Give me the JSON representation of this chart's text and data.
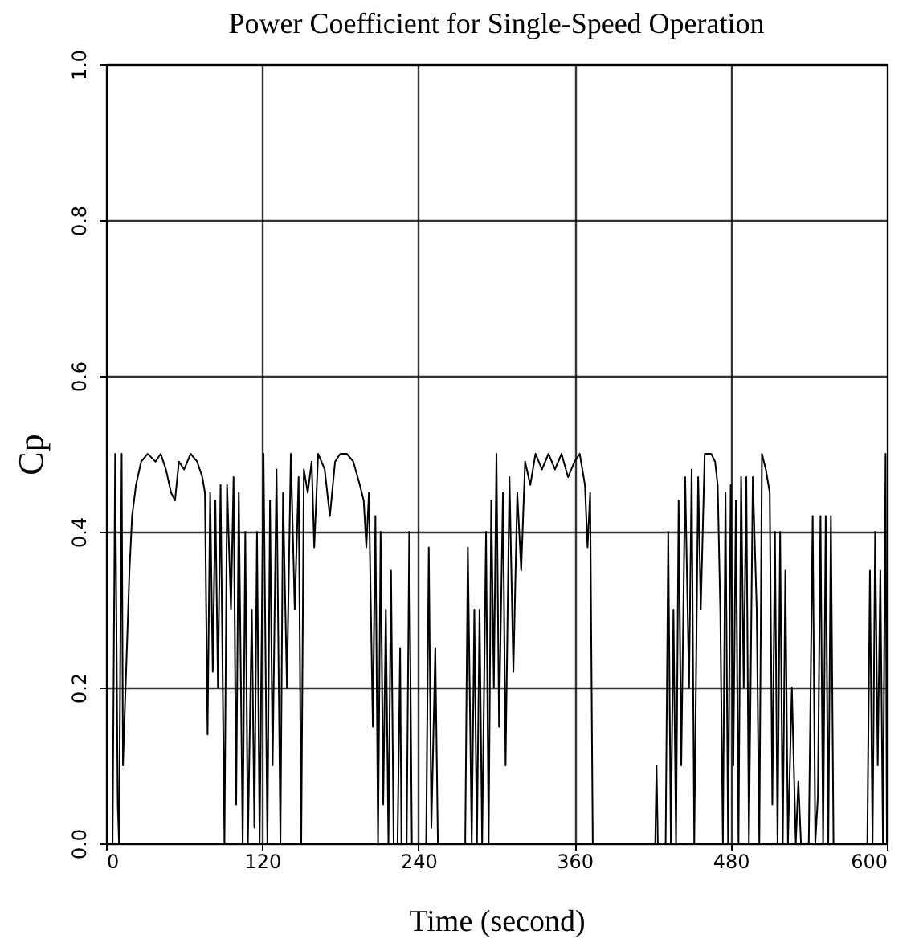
{
  "chart_data": {
    "type": "line",
    "title": "Power Coefficient for Single-Speed Operation",
    "xlabel": "Time (second)",
    "ylabel": "Cp",
    "x": [
      0,
      5,
      7,
      9,
      10,
      12,
      13,
      15,
      18,
      20,
      23,
      27,
      32,
      38,
      42,
      46,
      50,
      53,
      56,
      60,
      65,
      70,
      74,
      76,
      78,
      80,
      82,
      84,
      86,
      88,
      91,
      93,
      96,
      98,
      100,
      102,
      105,
      107,
      109,
      112,
      114,
      116,
      118,
      121,
      124,
      126,
      128,
      131,
      134,
      136,
      139,
      142,
      145,
      148,
      150,
      152,
      155,
      158,
      160,
      163,
      168,
      172,
      176,
      180,
      185,
      190,
      195,
      198,
      200,
      202,
      205,
      207,
      209,
      211,
      213,
      215,
      217,
      219,
      221,
      224,
      226,
      227,
      231,
      233,
      235,
      246,
      248,
      250,
      253,
      255,
      276,
      278,
      281,
      283,
      285,
      287,
      289,
      292,
      294,
      296,
      298,
      300,
      302,
      305,
      307,
      310,
      313,
      316,
      319,
      322,
      326,
      330,
      335,
      340,
      345,
      350,
      355,
      360,
      364,
      368,
      370,
      372,
      374,
      376,
      422,
      423,
      424,
      430,
      432,
      434,
      436,
      438,
      440,
      442,
      445,
      448,
      450,
      452,
      455,
      457,
      460,
      465,
      468,
      470,
      472,
      474,
      476,
      478,
      480,
      482,
      484,
      486,
      488,
      490,
      492,
      494,
      497,
      500,
      502,
      504,
      507,
      510,
      512,
      514,
      516,
      518,
      520,
      522,
      524,
      527,
      530,
      532,
      534,
      540,
      543,
      545,
      547,
      549,
      551,
      553,
      555,
      557,
      559,
      585,
      587,
      589,
      591,
      593,
      595,
      597,
      599,
      600
    ],
    "series": [
      {
        "color": "#000000",
        "values": [
          0,
          0,
          0.5,
          0.05,
          0,
          0.5,
          0.1,
          0.2,
          0.35,
          0.42,
          0.46,
          0.49,
          0.5,
          0.49,
          0.5,
          0.48,
          0.45,
          0.44,
          0.49,
          0.48,
          0.5,
          0.49,
          0.47,
          0.45,
          0.14,
          0.45,
          0.22,
          0.44,
          0.2,
          0.46,
          0,
          0.46,
          0.3,
          0.47,
          0.05,
          0.45,
          0,
          0.4,
          0,
          0.3,
          0.02,
          0.4,
          0,
          0.5,
          0,
          0.44,
          0.1,
          0.48,
          0,
          0.45,
          0.2,
          0.5,
          0.3,
          0.47,
          0,
          0.48,
          0.45,
          0.49,
          0.38,
          0.5,
          0.48,
          0.42,
          0.49,
          0.5,
          0.5,
          0.49,
          0.46,
          0.44,
          0.38,
          0.45,
          0.15,
          0.42,
          0,
          0.4,
          0.05,
          0.3,
          0,
          0.35,
          0,
          0,
          0.25,
          0,
          0,
          0.4,
          0,
          0,
          0.38,
          0.02,
          0.25,
          0,
          0,
          0.38,
          0,
          0.3,
          0,
          0.3,
          0,
          0.4,
          0,
          0.44,
          0.2,
          0.5,
          0.15,
          0.45,
          0.1,
          0.47,
          0.22,
          0.45,
          0.35,
          0.49,
          0.46,
          0.5,
          0.48,
          0.5,
          0.48,
          0.5,
          0.47,
          0.49,
          0.5,
          0.46,
          0.38,
          0.45,
          0,
          0,
          0,
          0.1,
          0,
          0,
          0.4,
          0,
          0.3,
          0,
          0.44,
          0.1,
          0.47,
          0.2,
          0.48,
          0,
          0.47,
          0.3,
          0.5,
          0.5,
          0.49,
          0.46,
          0.3,
          0,
          0.45,
          0,
          0.46,
          0.1,
          0.44,
          0,
          0.47,
          0.2,
          0.47,
          0,
          0.47,
          0.3,
          0,
          0.5,
          0.48,
          0.45,
          0.05,
          0.4,
          0,
          0.4,
          0,
          0.35,
          0,
          0.2,
          0,
          0.08,
          0,
          0,
          0.42,
          0,
          0.06,
          0.42,
          0,
          0.42,
          0,
          0.42,
          0,
          0,
          0.35,
          0,
          0.4,
          0.1,
          0.35,
          0,
          0.5,
          0
        ]
      }
    ],
    "xlim": [
      0,
      600
    ],
    "xticks": [
      0,
      120,
      240,
      360,
      480,
      600
    ],
    "ylim": [
      0,
      1
    ],
    "yticks": [
      {
        "value": 0,
        "label": "0.0"
      },
      0.2,
      0.4,
      0.6,
      0.8,
      {
        "value": 1,
        "label": "1.0"
      }
    ],
    "grid": true,
    "line_style": "solid",
    "marker": "none"
  }
}
